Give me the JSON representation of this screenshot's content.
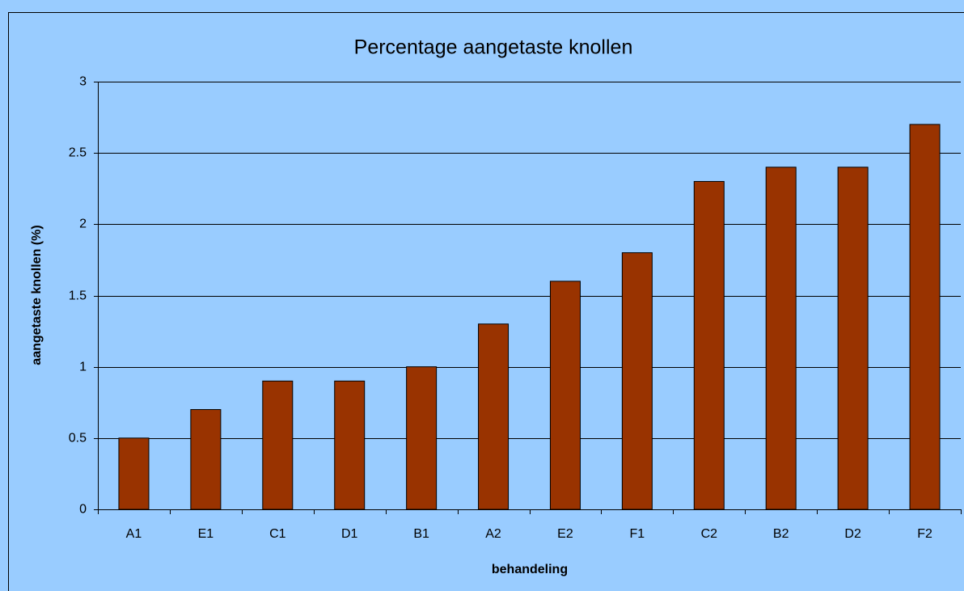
{
  "chart_data": {
    "type": "bar",
    "title": "Percentage aangetaste knollen",
    "x_label": "behandeling",
    "y_label": "aangetaste knollen (%)",
    "categories": [
      "A1",
      "E1",
      "C1",
      "D1",
      "B1",
      "A2",
      "E2",
      "F1",
      "C2",
      "B2",
      "D2",
      "F2"
    ],
    "values": [
      0.5,
      0.7,
      0.9,
      0.9,
      1.0,
      1.3,
      1.6,
      1.8,
      2.3,
      2.4,
      2.4,
      2.7
    ],
    "color": "#993300",
    "ylim": [
      0,
      3
    ],
    "yticks": [
      0,
      0.5,
      1,
      1.5,
      2,
      2.5,
      3
    ],
    "grid": true
  }
}
